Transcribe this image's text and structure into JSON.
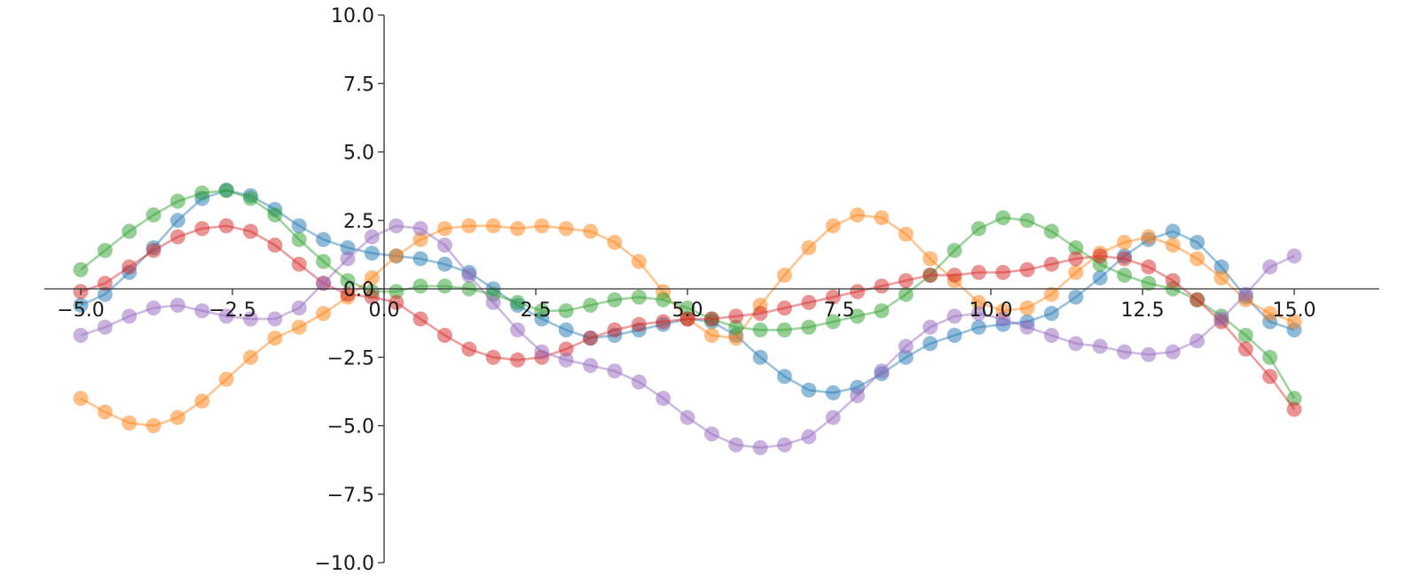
{
  "chart_data": {
    "type": "line",
    "title": "",
    "xlabel": "",
    "ylabel": "",
    "xlim": [
      -5.6,
      16.4
    ],
    "ylim": [
      -10,
      10
    ],
    "x_ticks": [
      -5.0,
      -2.5,
      0.0,
      2.5,
      5.0,
      7.5,
      10.0,
      12.5,
      15.0
    ],
    "x_tick_labels": [
      "−5.0",
      "−2.5",
      "0.0",
      "2.5",
      "5.0",
      "7.5",
      "10.0",
      "12.5",
      "15.0"
    ],
    "y_ticks": [
      -10.0,
      -7.5,
      -5.0,
      -2.5,
      0.0,
      2.5,
      5.0,
      7.5,
      10.0
    ],
    "y_tick_labels": [
      "−10.0",
      "−7.5",
      "−5.0",
      "−2.5",
      "0.0",
      "2.5",
      "5.0",
      "7.5",
      "10.0"
    ],
    "spines": "centered at origin",
    "grid": false,
    "legend": "none",
    "marker": "circle",
    "series": [
      {
        "color": "#1f77b4",
        "points": [
          [
            -5.0,
            -0.6
          ],
          [
            -4.6,
            -0.2
          ],
          [
            -4.2,
            0.6
          ],
          [
            -3.8,
            1.5
          ],
          [
            -3.4,
            2.5
          ],
          [
            -3.0,
            3.3
          ],
          [
            -2.6,
            3.6
          ],
          [
            -2.2,
            3.4
          ],
          [
            -1.8,
            2.9
          ],
          [
            -1.4,
            2.3
          ],
          [
            -1.0,
            1.8
          ],
          [
            -0.6,
            1.5
          ],
          [
            -0.2,
            1.3
          ],
          [
            0.2,
            1.2
          ],
          [
            0.6,
            1.1
          ],
          [
            1.0,
            0.9
          ],
          [
            1.4,
            0.6
          ],
          [
            1.8,
            0.0
          ],
          [
            2.2,
            -0.6
          ],
          [
            2.6,
            -1.1
          ],
          [
            3.0,
            -1.5
          ],
          [
            3.4,
            -1.8
          ],
          [
            3.8,
            -1.7
          ],
          [
            4.2,
            -1.5
          ],
          [
            4.6,
            -1.3
          ],
          [
            5.0,
            -1.1
          ],
          [
            5.4,
            -1.2
          ],
          [
            5.8,
            -1.7
          ],
          [
            6.2,
            -2.5
          ],
          [
            6.6,
            -3.2
          ],
          [
            7.0,
            -3.7
          ],
          [
            7.4,
            -3.8
          ],
          [
            7.8,
            -3.6
          ],
          [
            8.2,
            -3.1
          ],
          [
            8.6,
            -2.5
          ],
          [
            9.0,
            -2.0
          ],
          [
            9.4,
            -1.7
          ],
          [
            9.8,
            -1.4
          ],
          [
            10.2,
            -1.3
          ],
          [
            10.6,
            -1.2
          ],
          [
            11.0,
            -0.9
          ],
          [
            11.4,
            -0.3
          ],
          [
            11.8,
            0.4
          ],
          [
            12.2,
            1.2
          ],
          [
            12.6,
            1.8
          ],
          [
            13.0,
            2.1
          ],
          [
            13.4,
            1.7
          ],
          [
            13.8,
            0.8
          ],
          [
            14.2,
            -0.3
          ],
          [
            14.6,
            -1.2
          ],
          [
            15.0,
            -1.5
          ]
        ]
      },
      {
        "color": "#ff7f0e",
        "points": [
          [
            -5.0,
            -4.0
          ],
          [
            -4.6,
            -4.5
          ],
          [
            -4.2,
            -4.9
          ],
          [
            -3.8,
            -5.0
          ],
          [
            -3.4,
            -4.7
          ],
          [
            -3.0,
            -4.1
          ],
          [
            -2.6,
            -3.3
          ],
          [
            -2.2,
            -2.5
          ],
          [
            -1.8,
            -1.8
          ],
          [
            -1.4,
            -1.4
          ],
          [
            -1.0,
            -0.9
          ],
          [
            -0.6,
            -0.3
          ],
          [
            -0.2,
            0.4
          ],
          [
            0.2,
            1.2
          ],
          [
            0.6,
            1.8
          ],
          [
            1.0,
            2.2
          ],
          [
            1.4,
            2.3
          ],
          [
            1.8,
            2.3
          ],
          [
            2.2,
            2.2
          ],
          [
            2.6,
            2.3
          ],
          [
            3.0,
            2.2
          ],
          [
            3.4,
            2.1
          ],
          [
            3.8,
            1.7
          ],
          [
            4.2,
            1.0
          ],
          [
            4.6,
            -0.1
          ],
          [
            5.0,
            -1.1
          ],
          [
            5.4,
            -1.7
          ],
          [
            5.8,
            -1.8
          ],
          [
            6.2,
            -0.6
          ],
          [
            6.6,
            0.5
          ],
          [
            7.0,
            1.5
          ],
          [
            7.4,
            2.3
          ],
          [
            7.8,
            2.7
          ],
          [
            8.2,
            2.6
          ],
          [
            8.6,
            2.0
          ],
          [
            9.0,
            1.1
          ],
          [
            9.4,
            0.3
          ],
          [
            9.8,
            -0.5
          ],
          [
            10.2,
            -0.8
          ],
          [
            10.6,
            -0.7
          ],
          [
            11.0,
            -0.2
          ],
          [
            11.4,
            0.6
          ],
          [
            11.8,
            1.3
          ],
          [
            12.2,
            1.7
          ],
          [
            12.6,
            1.9
          ],
          [
            13.0,
            1.6
          ],
          [
            13.4,
            1.1
          ],
          [
            13.8,
            0.4
          ],
          [
            14.2,
            -0.4
          ],
          [
            14.6,
            -0.9
          ],
          [
            15.0,
            -1.2
          ]
        ]
      },
      {
        "color": "#2ca02c",
        "points": [
          [
            -5.0,
            0.7
          ],
          [
            -4.6,
            1.4
          ],
          [
            -4.2,
            2.1
          ],
          [
            -3.8,
            2.7
          ],
          [
            -3.4,
            3.2
          ],
          [
            -3.0,
            3.5
          ],
          [
            -2.6,
            3.6
          ],
          [
            -2.2,
            3.3
          ],
          [
            -1.8,
            2.7
          ],
          [
            -1.4,
            1.8
          ],
          [
            -1.0,
            1.0
          ],
          [
            -0.6,
            0.3
          ],
          [
            -0.2,
            -0.1
          ],
          [
            0.2,
            -0.1
          ],
          [
            0.6,
            0.1
          ],
          [
            1.0,
            0.1
          ],
          [
            1.4,
            0.0
          ],
          [
            1.8,
            -0.2
          ],
          [
            2.2,
            -0.5
          ],
          [
            2.6,
            -0.8
          ],
          [
            3.0,
            -0.8
          ],
          [
            3.4,
            -0.6
          ],
          [
            3.8,
            -0.4
          ],
          [
            4.2,
            -0.3
          ],
          [
            4.6,
            -0.4
          ],
          [
            5.0,
            -0.7
          ],
          [
            5.4,
            -1.1
          ],
          [
            5.8,
            -1.4
          ],
          [
            6.2,
            -1.5
          ],
          [
            6.6,
            -1.5
          ],
          [
            7.0,
            -1.4
          ],
          [
            7.4,
            -1.2
          ],
          [
            7.8,
            -1.0
          ],
          [
            8.2,
            -0.8
          ],
          [
            8.6,
            -0.2
          ],
          [
            9.0,
            0.5
          ],
          [
            9.4,
            1.4
          ],
          [
            9.8,
            2.2
          ],
          [
            10.2,
            2.6
          ],
          [
            10.6,
            2.5
          ],
          [
            11.0,
            2.1
          ],
          [
            11.4,
            1.5
          ],
          [
            11.8,
            0.9
          ],
          [
            12.2,
            0.5
          ],
          [
            12.6,
            0.2
          ],
          [
            13.0,
            0.0
          ],
          [
            13.4,
            -0.4
          ],
          [
            13.8,
            -1.0
          ],
          [
            14.2,
            -1.7
          ],
          [
            14.6,
            -2.5
          ],
          [
            15.0,
            -4.0
          ]
        ]
      },
      {
        "color": "#d62728",
        "points": [
          [
            -5.0,
            -0.1
          ],
          [
            -4.6,
            0.2
          ],
          [
            -4.2,
            0.8
          ],
          [
            -3.8,
            1.4
          ],
          [
            -3.4,
            1.9
          ],
          [
            -3.0,
            2.2
          ],
          [
            -2.6,
            2.3
          ],
          [
            -2.2,
            2.1
          ],
          [
            -1.8,
            1.6
          ],
          [
            -1.4,
            0.9
          ],
          [
            -1.0,
            0.2
          ],
          [
            -0.6,
            -0.2
          ],
          [
            -0.2,
            -0.3
          ],
          [
            0.2,
            -0.5
          ],
          [
            0.6,
            -1.1
          ],
          [
            1.0,
            -1.7
          ],
          [
            1.4,
            -2.2
          ],
          [
            1.8,
            -2.5
          ],
          [
            2.2,
            -2.6
          ],
          [
            2.6,
            -2.5
          ],
          [
            3.0,
            -2.2
          ],
          [
            3.4,
            -1.8
          ],
          [
            3.8,
            -1.5
          ],
          [
            4.2,
            -1.3
          ],
          [
            4.6,
            -1.2
          ],
          [
            5.0,
            -1.1
          ],
          [
            5.4,
            -1.1
          ],
          [
            5.8,
            -1.0
          ],
          [
            6.2,
            -0.9
          ],
          [
            6.6,
            -0.7
          ],
          [
            7.0,
            -0.5
          ],
          [
            7.4,
            -0.3
          ],
          [
            7.8,
            -0.1
          ],
          [
            8.2,
            0.1
          ],
          [
            8.6,
            0.3
          ],
          [
            9.0,
            0.5
          ],
          [
            9.4,
            0.5
          ],
          [
            9.8,
            0.6
          ],
          [
            10.2,
            0.6
          ],
          [
            10.6,
            0.7
          ],
          [
            11.0,
            0.9
          ],
          [
            11.4,
            1.1
          ],
          [
            11.8,
            1.2
          ],
          [
            12.2,
            1.1
          ],
          [
            12.6,
            0.8
          ],
          [
            13.0,
            0.3
          ],
          [
            13.4,
            -0.4
          ],
          [
            13.8,
            -1.2
          ],
          [
            14.2,
            -2.2
          ],
          [
            14.6,
            -3.2
          ],
          [
            15.0,
            -4.4
          ]
        ]
      },
      {
        "color": "#9467bd",
        "points": [
          [
            -5.0,
            -1.7
          ],
          [
            -4.6,
            -1.4
          ],
          [
            -4.2,
            -1.0
          ],
          [
            -3.8,
            -0.7
          ],
          [
            -3.4,
            -0.6
          ],
          [
            -3.0,
            -0.8
          ],
          [
            -2.6,
            -1.0
          ],
          [
            -2.2,
            -1.1
          ],
          [
            -1.8,
            -1.1
          ],
          [
            -1.4,
            -0.7
          ],
          [
            -1.0,
            0.2
          ],
          [
            -0.6,
            1.1
          ],
          [
            -0.2,
            1.9
          ],
          [
            0.2,
            2.3
          ],
          [
            0.6,
            2.2
          ],
          [
            1.0,
            1.6
          ],
          [
            1.4,
            0.5
          ],
          [
            1.8,
            -0.5
          ],
          [
            2.2,
            -1.5
          ],
          [
            2.6,
            -2.3
          ],
          [
            3.0,
            -2.6
          ],
          [
            3.4,
            -2.8
          ],
          [
            3.8,
            -3.0
          ],
          [
            4.2,
            -3.4
          ],
          [
            4.6,
            -4.0
          ],
          [
            5.0,
            -4.7
          ],
          [
            5.4,
            -5.3
          ],
          [
            5.8,
            -5.7
          ],
          [
            6.2,
            -5.8
          ],
          [
            6.6,
            -5.7
          ],
          [
            7.0,
            -5.4
          ],
          [
            7.4,
            -4.7
          ],
          [
            7.8,
            -3.9
          ],
          [
            8.2,
            -3.0
          ],
          [
            8.6,
            -2.1
          ],
          [
            9.0,
            -1.4
          ],
          [
            9.4,
            -1.0
          ],
          [
            9.8,
            -0.9
          ],
          [
            10.2,
            -1.1
          ],
          [
            10.6,
            -1.4
          ],
          [
            11.0,
            -1.7
          ],
          [
            11.4,
            -2.0
          ],
          [
            11.8,
            -2.1
          ],
          [
            12.2,
            -2.3
          ],
          [
            12.6,
            -2.4
          ],
          [
            13.0,
            -2.3
          ],
          [
            13.4,
            -1.9
          ],
          [
            13.8,
            -1.1
          ],
          [
            14.2,
            -0.2
          ],
          [
            14.6,
            0.8
          ],
          [
            15.0,
            1.2
          ]
        ]
      }
    ]
  }
}
